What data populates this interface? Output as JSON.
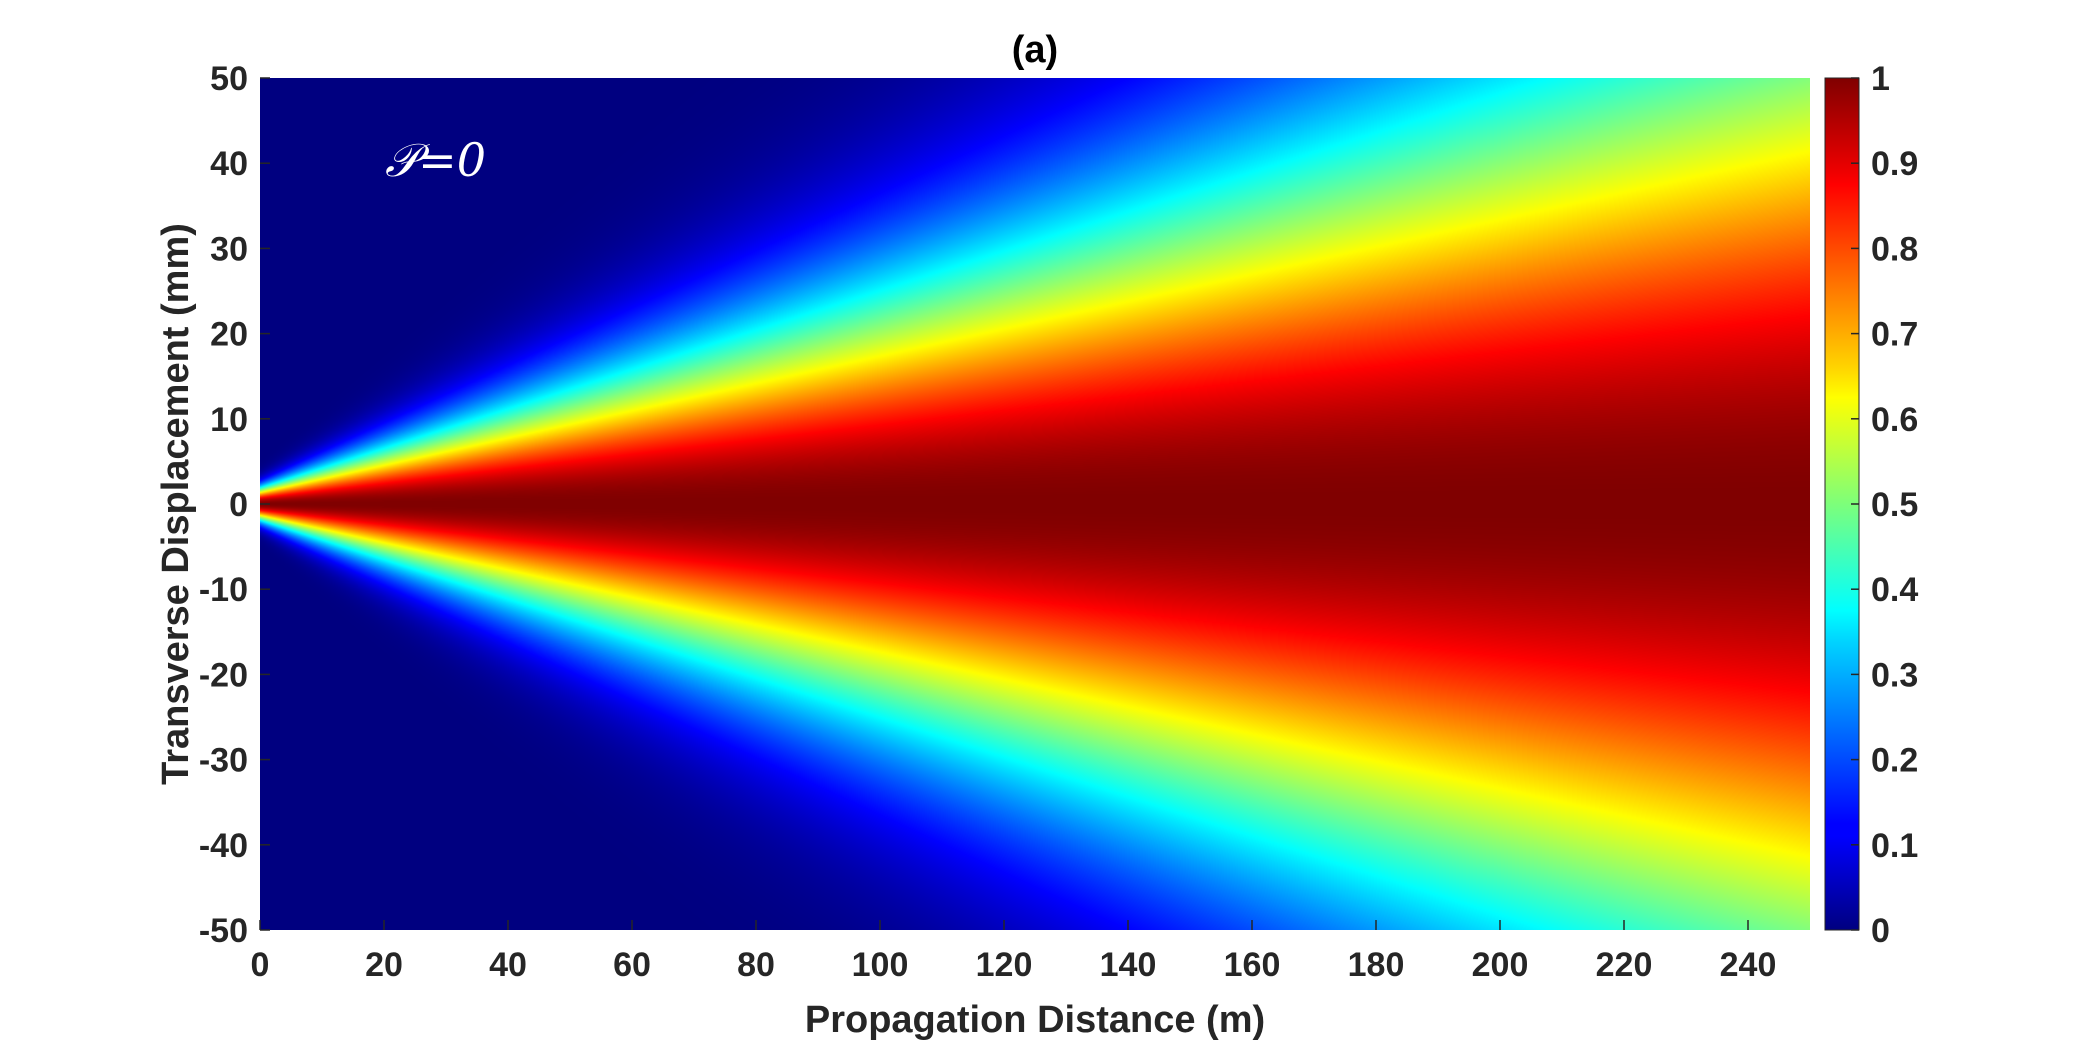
{
  "chart_data": {
    "type": "heatmap",
    "title": "(a)",
    "xlabel": "Propagation Distance (m)",
    "ylabel": "Transverse Displacement (mm)",
    "annotation": "𝒫=0",
    "xlim": [
      0,
      250
    ],
    "ylim": [
      -50,
      50
    ],
    "xticks": [
      0,
      20,
      40,
      60,
      80,
      100,
      120,
      140,
      160,
      180,
      200,
      220,
      240
    ],
    "yticks": [
      50,
      40,
      30,
      20,
      10,
      0,
      -10,
      -20,
      -30,
      -40,
      -50
    ],
    "colorbar": {
      "colormap": "jet",
      "range": [
        0,
        1
      ],
      "ticks": [
        1,
        0.9,
        0.8,
        0.7,
        0.6,
        0.5,
        0.4,
        0.3,
        0.2,
        0.1,
        0
      ]
    },
    "field": {
      "description_of_values": "Normalized intensity, maximal (1) along y=0, spreading with distance",
      "center_y": 0,
      "width_at_x0": 1.2,
      "spread_per_m": 0.145,
      "peak": 1.0
    },
    "grid": false
  }
}
